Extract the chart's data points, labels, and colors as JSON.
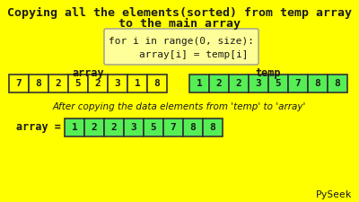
{
  "bg_color": "#FFFF00",
  "title_line1": "Copying all the elements(sorted) from temp array",
  "title_line2": "to the main array",
  "code_line1": "for i in range(0, size):",
  "code_line2": "    array[i] = temp[i]",
  "array_label": "array",
  "temp_label": "temp",
  "array_values": [
    7,
    8,
    2,
    5,
    2,
    3,
    1,
    8
  ],
  "temp_values": [
    1,
    2,
    2,
    3,
    5,
    7,
    8,
    8
  ],
  "result_values": [
    1,
    2,
    2,
    3,
    5,
    7,
    8,
    8
  ],
  "array_box_color": "#FFFF00",
  "temp_box_color": "#55EE55",
  "result_box_color": "#55EE55",
  "array_border_color": "#333333",
  "text_color": "#1a1a1a",
  "code_box_color": "#FFFF99",
  "code_border_color": "#999999",
  "after_text": "After copying the data elements from 'temp' to 'array'",
  "result_label": "array =",
  "watermark": "PySeek",
  "title_fontsize": 9.5,
  "label_fontsize": 8.5,
  "code_fontsize": 8,
  "cell_fontsize": 8,
  "after_fontsize": 7.5,
  "watermark_fontsize": 8
}
